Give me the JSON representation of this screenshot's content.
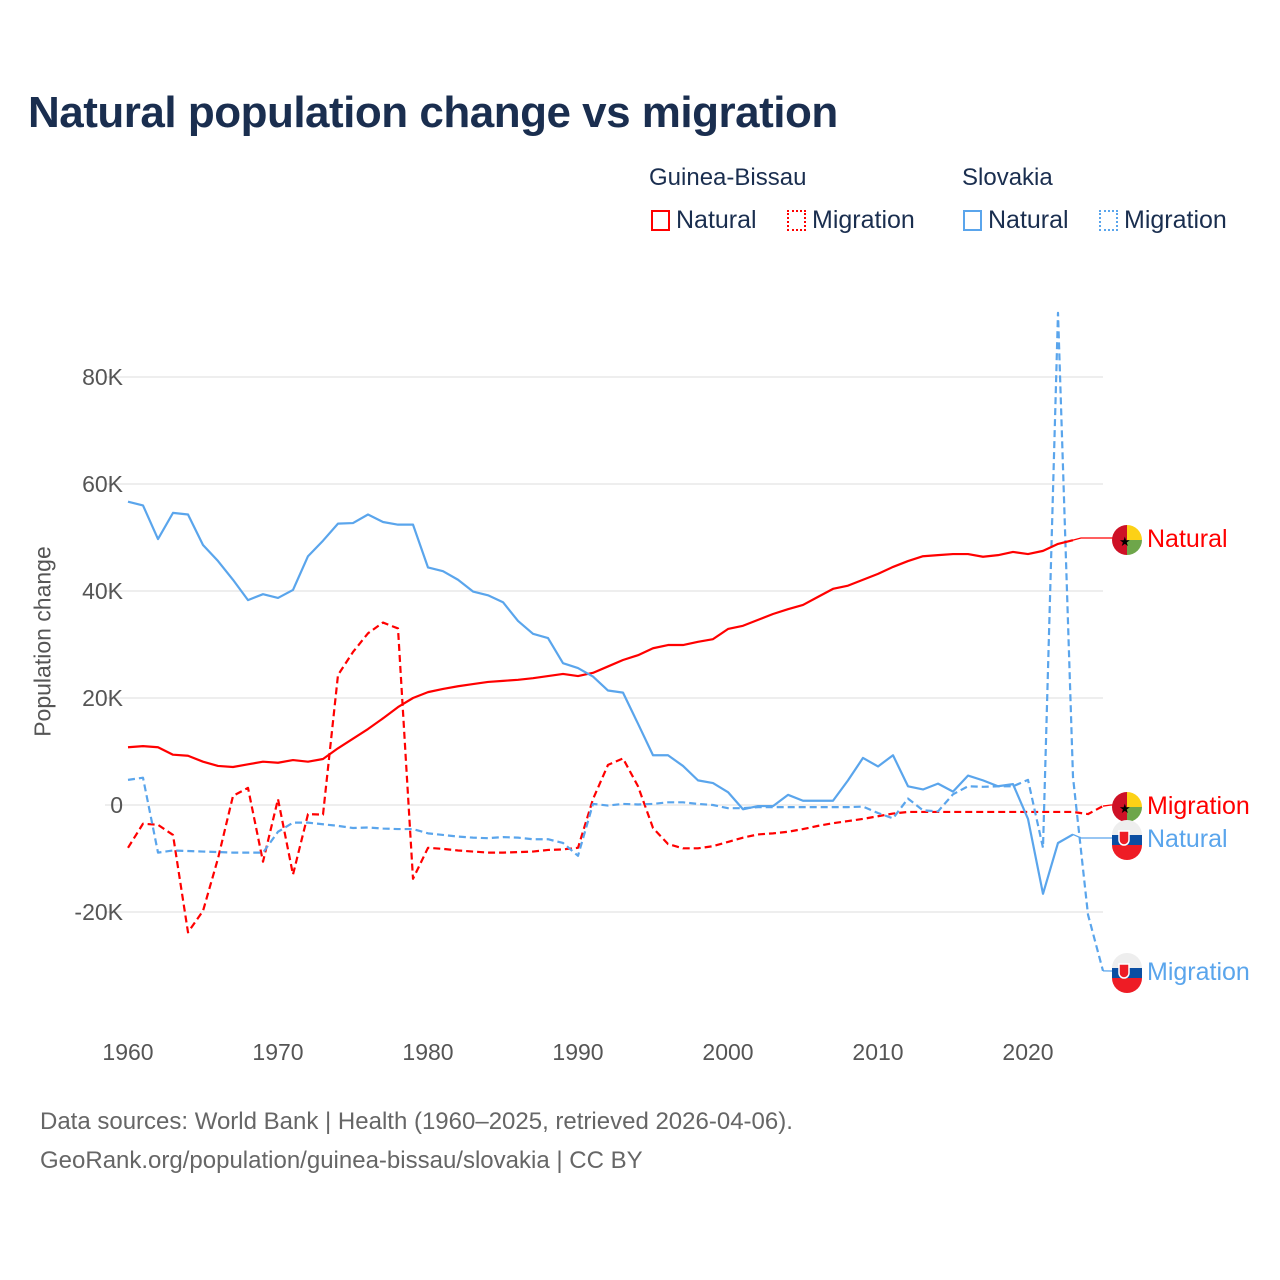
{
  "chart_data": {
    "type": "line",
    "title": "Natural population change vs migration",
    "ylabel": "Population change",
    "xlabel": "",
    "xlim": [
      1960,
      2025
    ],
    "ylim": [
      -30000,
      90000
    ],
    "x_ticks": [
      1960,
      1970,
      1980,
      1990,
      2000,
      2010,
      2020
    ],
    "x_tick_labels": [
      "1960",
      "1970",
      "1980",
      "1990",
      "2000",
      "2010",
      "2020"
    ],
    "y_ticks": [
      -20000,
      0,
      20000,
      40000,
      60000,
      80000
    ],
    "y_tick_labels": [
      "-20K",
      "0",
      "20K",
      "40K",
      "60K",
      "80K"
    ],
    "grid": true,
    "legend": {
      "placement": "top-right",
      "groups": [
        {
          "name": "Guinea-Bissau",
          "items": [
            "Natural",
            "Migration"
          ]
        },
        {
          "name": "Slovakia",
          "items": [
            "Natural",
            "Migration"
          ]
        }
      ]
    },
    "series": [
      {
        "country": "Guinea-Bissau",
        "name": "Natural",
        "label": "Natural",
        "color": "#ff0000",
        "dash": false,
        "start_year": 1960,
        "values": [
          10.8,
          11.0,
          10.8,
          9.4,
          9.2,
          8.1,
          7.3,
          7.1,
          7.6,
          8.1,
          7.9,
          8.4,
          8.1,
          8.6,
          10.6,
          12.4,
          14.2,
          16.2,
          18.3,
          20.0,
          21.1,
          21.7,
          22.2,
          22.6,
          23.0,
          23.2,
          23.4,
          23.7,
          24.1,
          24.5,
          24.1,
          24.7,
          25.9,
          27.1,
          28.0,
          29.3,
          29.9,
          29.9,
          30.5,
          31.0,
          32.9,
          33.5,
          34.6,
          35.7,
          36.6,
          37.4,
          38.9,
          40.4,
          41.0,
          42.1,
          43.2,
          44.5,
          45.6,
          46.5,
          46.7,
          46.9,
          46.9,
          46.4,
          46.7,
          47.3,
          46.9,
          47.5,
          48.8,
          49.5
        ]
      },
      {
        "country": "Guinea-Bissau",
        "name": "Migration",
        "label": "Migration",
        "color": "#ff0000",
        "dash": true,
        "start_year": 1960,
        "values": [
          -8.0,
          -3.5,
          -3.7,
          -5.6,
          -23.8,
          -19.8,
          -10.0,
          1.7,
          3.2,
          -10.6,
          1.1,
          -13.0,
          -1.7,
          -1.8,
          24.3,
          28.6,
          32.1,
          34.1,
          33.0,
          -13.8,
          -8.0,
          -8.2,
          -8.5,
          -8.7,
          -8.9,
          -8.9,
          -8.8,
          -8.7,
          -8.4,
          -8.3,
          -8.0,
          1.1,
          7.5,
          8.7,
          3.5,
          -4.3,
          -7.3,
          -8.1,
          -8.1,
          -7.7,
          -6.9,
          -6.1,
          -5.5,
          -5.3,
          -5.0,
          -4.5,
          -3.9,
          -3.4,
          -3.0,
          -2.6,
          -2.1,
          -1.6,
          -1.3,
          -1.3,
          -1.3,
          -1.3,
          -1.3,
          -1.3,
          -1.3,
          -1.3,
          -1.3,
          -1.3,
          -1.3,
          -1.3,
          -1.7,
          -0.2
        ]
      },
      {
        "country": "Slovakia",
        "name": "Natural",
        "label": "Natural",
        "color": "#5aa5ec",
        "dash": false,
        "start_year": 1960,
        "values": [
          56.7,
          56.0,
          49.7,
          54.6,
          54.3,
          48.6,
          45.6,
          42.1,
          38.3,
          39.4,
          38.7,
          40.2,
          46.5,
          49.4,
          52.6,
          52.7,
          54.3,
          52.9,
          52.4,
          52.4,
          44.4,
          43.7,
          42.1,
          39.9,
          39.2,
          37.9,
          34.4,
          32.0,
          31.2,
          26.5,
          25.6,
          24.0,
          21.4,
          21.0,
          15.2,
          9.3,
          9.3,
          7.3,
          4.6,
          4.1,
          2.4,
          -0.8,
          -0.2,
          -0.2,
          1.9,
          0.8,
          0.8,
          0.8,
          4.6,
          8.8,
          7.2,
          9.3,
          3.5,
          2.9,
          4.0,
          2.5,
          5.5,
          4.6,
          3.5,
          3.9,
          -2.6,
          -16.6,
          -7.1,
          -5.5
        ]
      },
      {
        "country": "Slovakia",
        "name": "Migration",
        "label": "Migration",
        "color": "#5aa5ec",
        "dash": true,
        "start_year": 1960,
        "values": [
          4.7,
          5.1,
          -8.9,
          -8.5,
          -8.6,
          -8.7,
          -8.8,
          -8.9,
          -8.9,
          -8.9,
          -5.0,
          -3.3,
          -3.3,
          -3.6,
          -3.9,
          -4.3,
          -4.2,
          -4.4,
          -4.5,
          -4.5,
          -5.3,
          -5.6,
          -5.9,
          -6.1,
          -6.2,
          -6.0,
          -6.1,
          -6.4,
          -6.4,
          -7.1,
          -9.5,
          0.2,
          -0.1,
          0.2,
          0.1,
          0.2,
          0.5,
          0.5,
          0.2,
          0.0,
          -0.6,
          -0.6,
          -0.4,
          -0.4,
          -0.4,
          -0.4,
          -0.4,
          -0.4,
          -0.4,
          -0.3,
          -1.5,
          -2.5,
          1.2,
          -1.0,
          -1.2,
          2.0,
          3.5,
          3.4,
          3.5,
          3.5,
          4.7,
          -8.0,
          92.0,
          5.2,
          -20.5,
          -31.0
        ]
      }
    ],
    "values_unit": "thousands"
  },
  "footer": {
    "line1": "Data sources: World Bank | Health (1960–2025, retrieved 2026-04-06).",
    "line2": "GeoRank.org/population/guinea-bissau/slovakia | CC BY"
  }
}
